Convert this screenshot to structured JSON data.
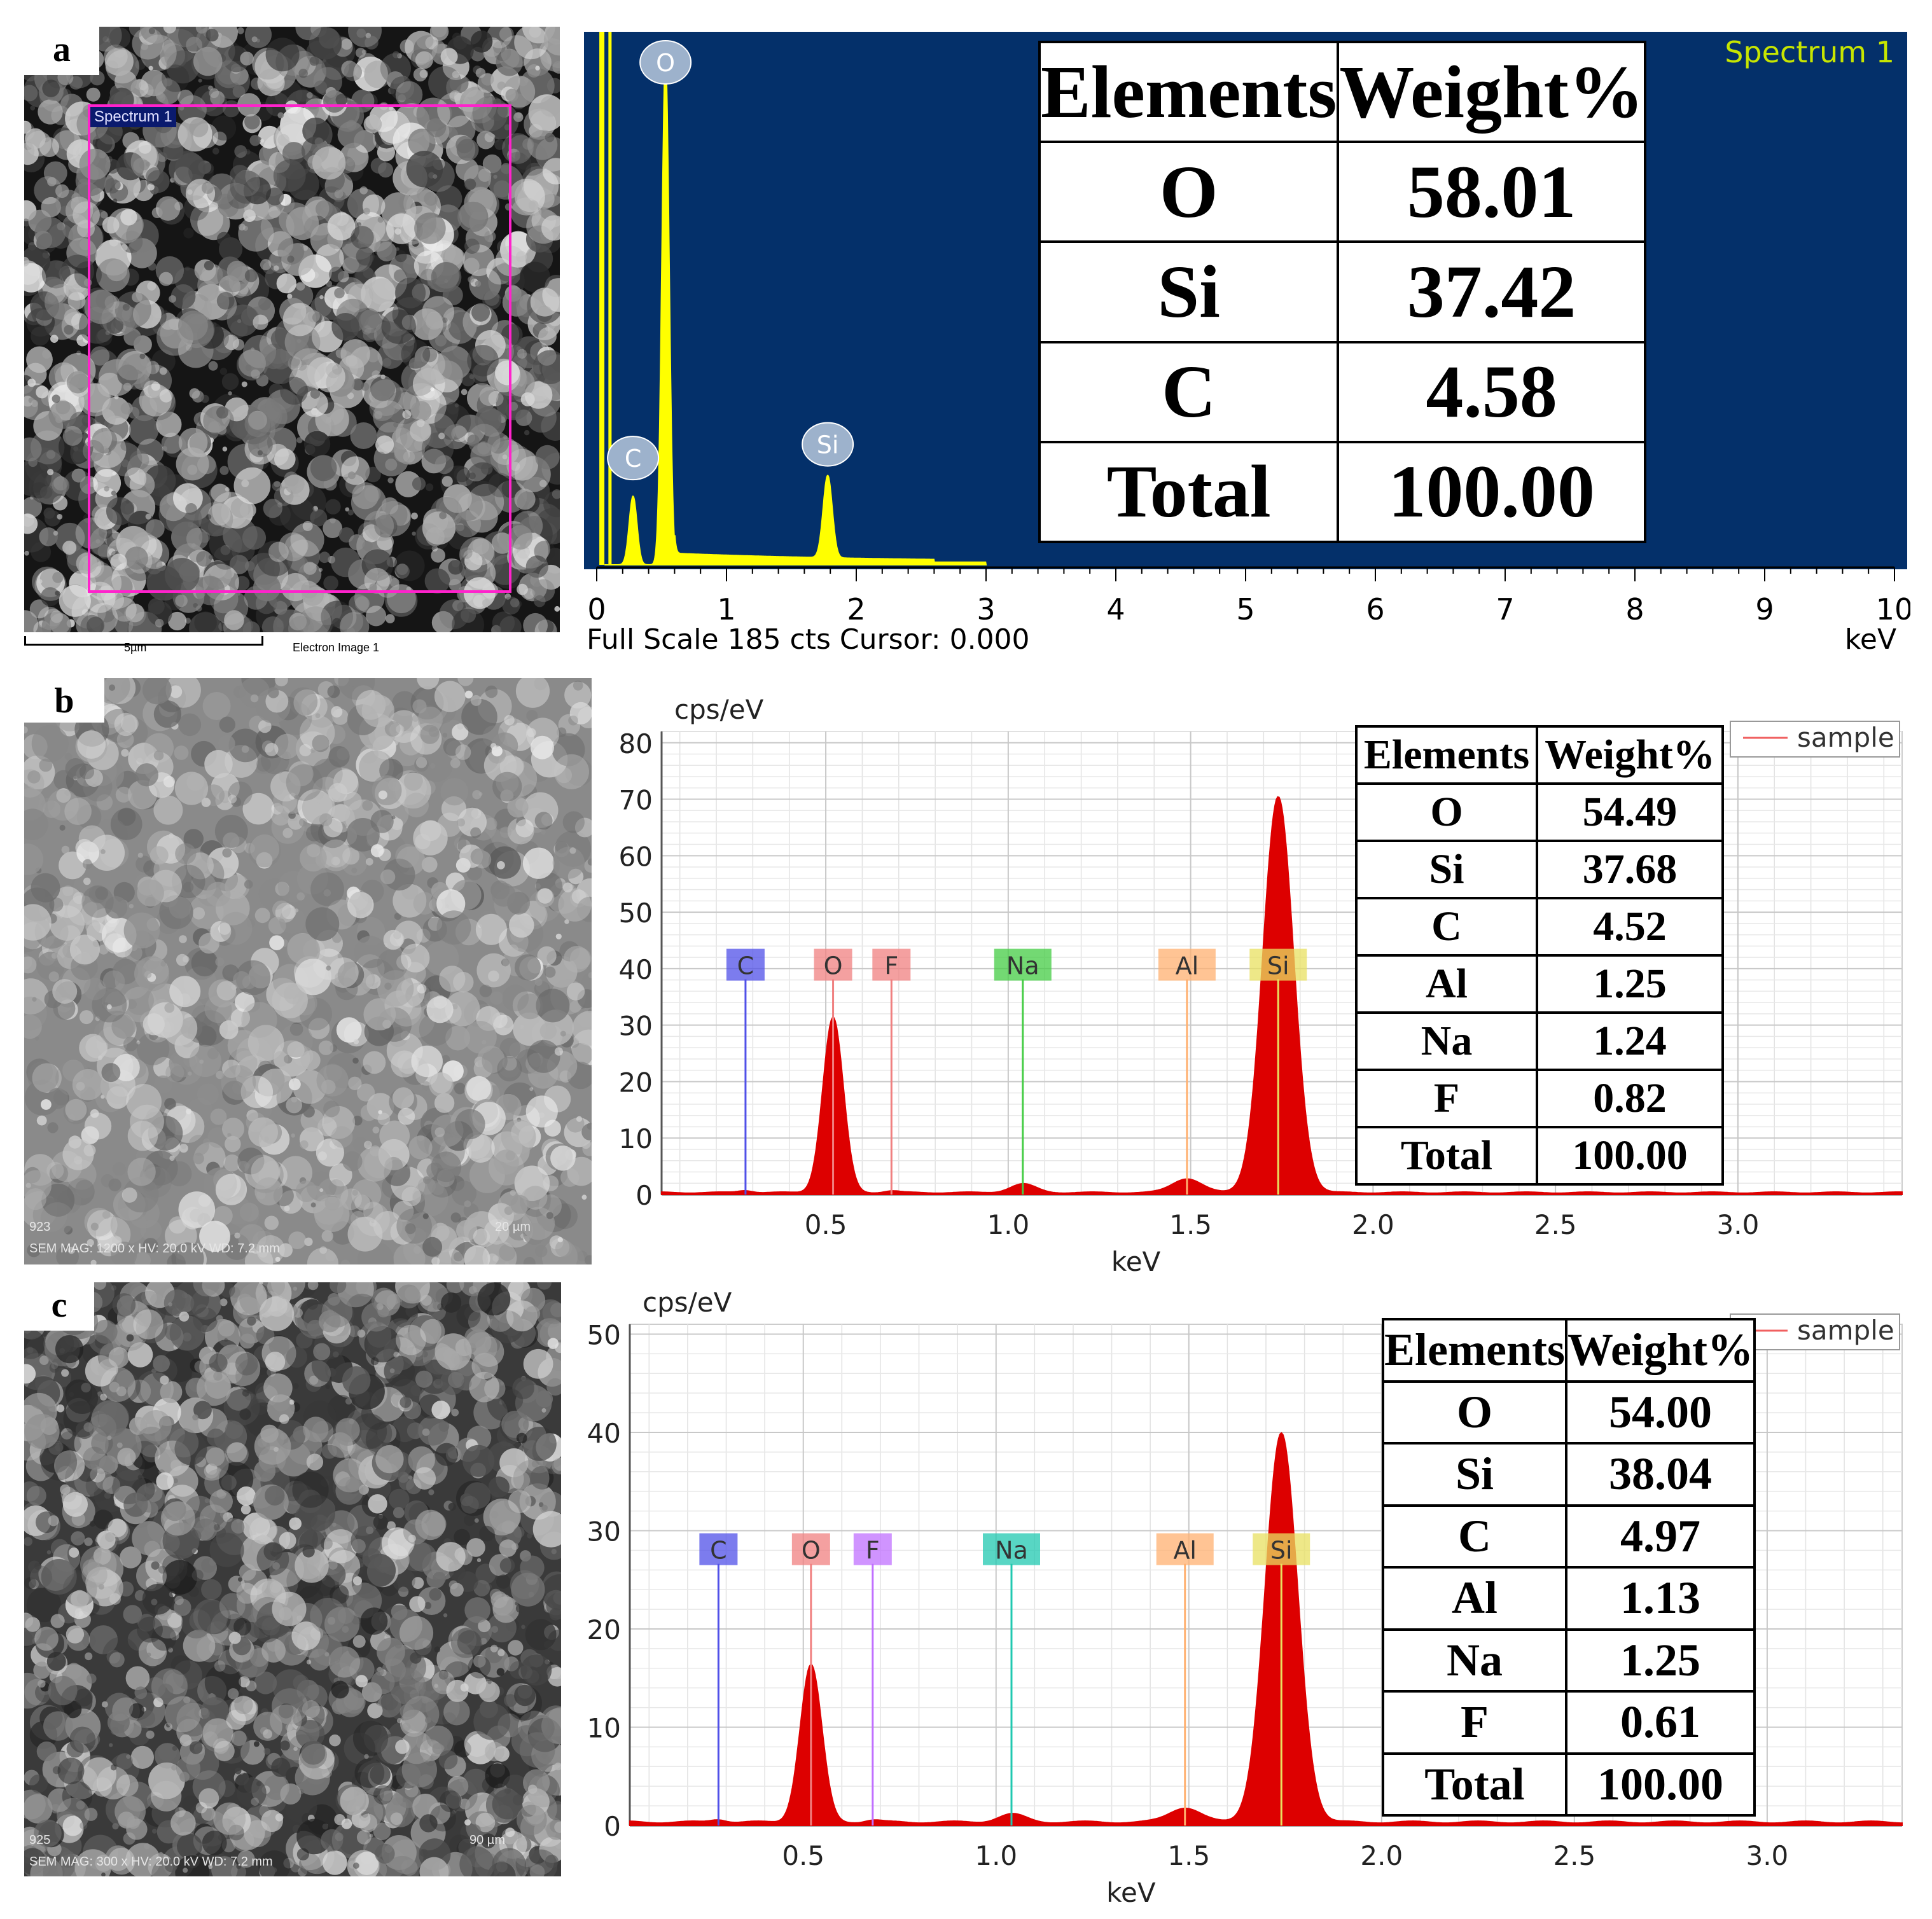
{
  "panels": [
    {
      "letter": "a",
      "sem": {
        "roi_label": "Spectrum 1",
        "scale_text": "5µm",
        "image_label": "Electron Image 1"
      },
      "spectrum_footer": {
        "left": "Full Scale 185 cts Cursor: 0.000",
        "right": "keV"
      },
      "table": {
        "headers": [
          "Elements",
          "Weight%"
        ],
        "rows": [
          [
            "O",
            "58.01"
          ],
          [
            "Si",
            "37.42"
          ],
          [
            "C",
            "4.58"
          ],
          [
            "Total",
            "100.00"
          ]
        ]
      }
    },
    {
      "letter": "b",
      "sem": {
        "number": "923",
        "info": "SEM MAG: 1200 x  HV: 20.0 kV  WD: 7.2 mm",
        "scale_text": "20 µm"
      },
      "table": {
        "headers": [
          "Elements",
          "Weight%"
        ],
        "rows": [
          [
            "O",
            "54.49"
          ],
          [
            "Si",
            "37.68"
          ],
          [
            "C",
            "4.52"
          ],
          [
            "Al",
            "1.25"
          ],
          [
            "Na",
            "1.24"
          ],
          [
            "F",
            "0.82"
          ],
          [
            "Total",
            "100.00"
          ]
        ]
      }
    },
    {
      "letter": "c",
      "sem": {
        "number": "925",
        "info": "SEM MAG: 300 x  HV: 20.0 kV  WD: 7.2 mm",
        "scale_text": "90 µm"
      },
      "table": {
        "headers": [
          "Elements",
          "Weight%"
        ],
        "rows": [
          [
            "O",
            "54.00"
          ],
          [
            "Si",
            "38.04"
          ],
          [
            "C",
            "4.97"
          ],
          [
            "Al",
            "1.13"
          ],
          [
            "Na",
            "1.25"
          ],
          [
            "F",
            "0.61"
          ],
          [
            "Total",
            "100.00"
          ]
        ]
      }
    }
  ],
  "colors": {
    "spectrum_a_bg": "#04306a",
    "spectrum_a_trace": "#ffff00",
    "spectrum_a_title": "#c8e600",
    "trace_bc": "#dd0000",
    "roi": "#ff22cc"
  },
  "chart_data": [
    {
      "type": "area",
      "title": "Spectrum 1",
      "xlabel": "keV",
      "xlim": [
        0,
        10
      ],
      "ylim": [
        0,
        185
      ],
      "xticks": [
        "0",
        "1",
        "2",
        "3",
        "4",
        "5",
        "6",
        "7",
        "8",
        "9",
        "10"
      ],
      "peaks": [
        {
          "label": "C",
          "x": 0.28,
          "y": 25
        },
        {
          "label": "O",
          "x": 0.53,
          "y": 185
        },
        {
          "label": "Si",
          "x": 1.78,
          "y": 30
        }
      ],
      "grid": false,
      "legend": "none"
    },
    {
      "type": "area",
      "ylabel": "cps/eV",
      "xlabel": "keV",
      "xlim": [
        0.05,
        3.45
      ],
      "ylim": [
        0,
        82
      ],
      "xticks": [
        "0.5",
        "1.0",
        "1.5",
        "2.0",
        "2.5",
        "3.0"
      ],
      "yticks": [
        "0",
        "10",
        "20",
        "30",
        "40",
        "50",
        "60",
        "70",
        "80"
      ],
      "series": [
        {
          "name": "sample"
        }
      ],
      "peaks": [
        {
          "label": "C",
          "x": 0.28,
          "y": 0.4
        },
        {
          "label": "O",
          "x": 0.52,
          "y": 31
        },
        {
          "label": "F",
          "x": 0.68,
          "y": 0.3
        },
        {
          "label": "Na",
          "x": 1.04,
          "y": 1.5
        },
        {
          "label": "Al",
          "x": 1.49,
          "y": 2.5
        },
        {
          "label": "Si",
          "x": 1.74,
          "y": 70
        }
      ],
      "marker_colors": {
        "C": "#5050e8",
        "O": "#f08080",
        "F": "#f08080",
        "Na": "#44cc44",
        "Al": "#ffb070",
        "Si": "#e8e060"
      },
      "grid": true,
      "legend": "top-right"
    },
    {
      "type": "area",
      "ylabel": "cps/eV",
      "xlabel": "keV",
      "xlim": [
        0.05,
        3.35
      ],
      "ylim": [
        0,
        51
      ],
      "xticks": [
        "0.5",
        "1.0",
        "1.5",
        "2.0",
        "2.5",
        "3.0"
      ],
      "yticks": [
        "0",
        "10",
        "20",
        "30",
        "40",
        "50"
      ],
      "series": [
        {
          "name": "sample"
        }
      ],
      "peaks": [
        {
          "label": "C",
          "x": 0.28,
          "y": 0.3
        },
        {
          "label": "O",
          "x": 0.52,
          "y": 16
        },
        {
          "label": "F",
          "x": 0.68,
          "y": 0.2
        },
        {
          "label": "Na",
          "x": 1.04,
          "y": 0.8
        },
        {
          "label": "Al",
          "x": 1.49,
          "y": 1.5
        },
        {
          "label": "Si",
          "x": 1.74,
          "y": 39.5
        }
      ],
      "marker_colors": {
        "C": "#5050e8",
        "O": "#f08080",
        "F": "#c070ff",
        "Na": "#20c8b0",
        "Al": "#ffb070",
        "Si": "#e8e060"
      },
      "grid": true,
      "legend": "top-right"
    }
  ]
}
